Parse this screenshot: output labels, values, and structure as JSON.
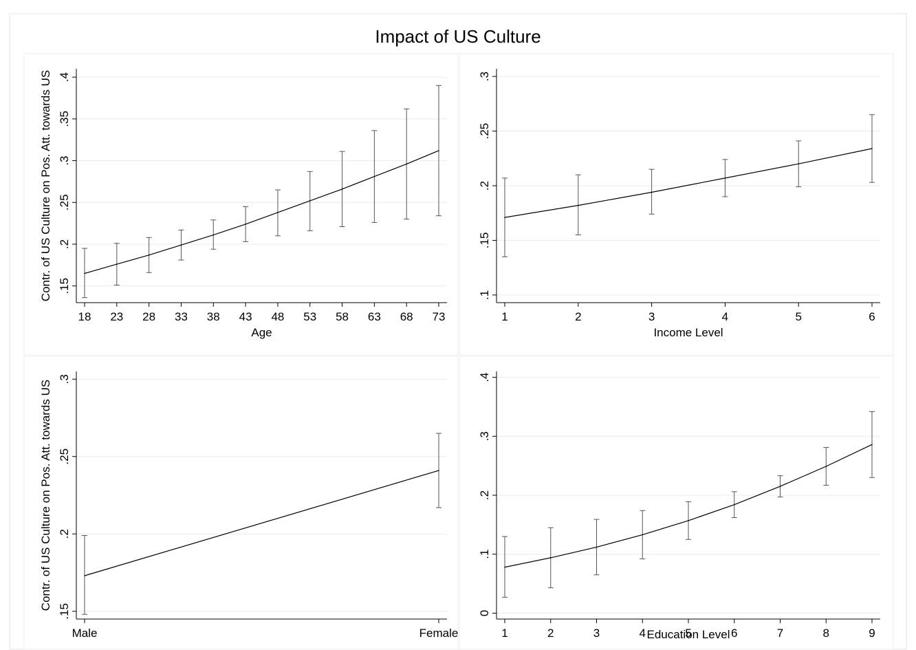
{
  "title": "Impact of US Culture",
  "chart_data": [
    {
      "type": "line",
      "panel": "top-left",
      "xlabel": "Age",
      "ylabel": "Contr. of US Culture on Pos. Att. towards US",
      "x": [
        18,
        23,
        28,
        33,
        38,
        43,
        48,
        53,
        58,
        63,
        68,
        73
      ],
      "xticks": [
        "18",
        "23",
        "28",
        "33",
        "38",
        "43",
        "48",
        "53",
        "58",
        "63",
        "68",
        "73"
      ],
      "xlim": [
        18,
        73
      ],
      "ylim": [
        0.13,
        0.41
      ],
      "yticks": [
        0.15,
        0.2,
        0.25,
        0.3,
        0.35,
        0.4
      ],
      "ytick_labels": [
        ".15",
        ".2",
        ".25",
        ".3",
        ".35",
        ".4"
      ],
      "grid": true,
      "series": [
        {
          "y": [
            0.165,
            0.176,
            0.187,
            0.199,
            0.211,
            0.224,
            0.238,
            0.252,
            0.266,
            0.281,
            0.296,
            0.312
          ],
          "lower": [
            0.136,
            0.151,
            0.166,
            0.181,
            0.194,
            0.203,
            0.21,
            0.216,
            0.221,
            0.226,
            0.23,
            0.234
          ],
          "upper": [
            0.195,
            0.201,
            0.208,
            0.217,
            0.229,
            0.245,
            0.265,
            0.287,
            0.311,
            0.336,
            0.362,
            0.39
          ]
        }
      ]
    },
    {
      "type": "line",
      "panel": "top-right",
      "xlabel": "Income Level",
      "ylabel": "",
      "x": [
        1,
        2,
        3,
        4,
        5,
        6
      ],
      "xticks": [
        "1",
        "2",
        "3",
        "4",
        "5",
        "6"
      ],
      "xlim": [
        1,
        6
      ],
      "ylim": [
        0.093,
        0.307
      ],
      "yticks": [
        0.1,
        0.15,
        0.2,
        0.25,
        0.3
      ],
      "ytick_labels": [
        ".1",
        ".15",
        ".2",
        ".25",
        ".3"
      ],
      "grid": true,
      "series": [
        {
          "y": [
            0.171,
            0.182,
            0.194,
            0.207,
            0.22,
            0.234
          ],
          "lower": [
            0.135,
            0.155,
            0.174,
            0.19,
            0.199,
            0.203
          ],
          "upper": [
            0.207,
            0.21,
            0.215,
            0.224,
            0.241,
            0.265
          ]
        }
      ]
    },
    {
      "type": "line",
      "panel": "bottom-left",
      "xlabel": "",
      "ylabel": "Contr. of US Culture on Pos. Att. towards US",
      "categories": [
        "Male",
        "Female"
      ],
      "xticks": [
        "Male",
        "Female"
      ],
      "ylim": [
        0.145,
        0.305
      ],
      "yticks": [
        0.15,
        0.2,
        0.25,
        0.3
      ],
      "ytick_labels": [
        ".15",
        ".2",
        ".25",
        ".3"
      ],
      "grid": true,
      "series": [
        {
          "y": [
            0.173,
            0.241
          ],
          "lower": [
            0.148,
            0.217
          ],
          "upper": [
            0.199,
            0.265
          ]
        }
      ]
    },
    {
      "type": "line",
      "panel": "bottom-right",
      "xlabel": "Education Level",
      "ylabel": "",
      "x": [
        1,
        2,
        3,
        4,
        5,
        6,
        7,
        8,
        9
      ],
      "xticks": [
        "1",
        "2",
        "3",
        "4",
        "5",
        "6",
        "7",
        "8",
        "9"
      ],
      "xlim": [
        1,
        9
      ],
      "ylim": [
        -0.01,
        0.41
      ],
      "yticks": [
        0,
        0.1,
        0.2,
        0.3,
        0.4
      ],
      "ytick_labels": [
        "0",
        ".1",
        ".2",
        ".3",
        ".4"
      ],
      "grid": true,
      "series": [
        {
          "y": [
            0.078,
            0.094,
            0.112,
            0.133,
            0.157,
            0.184,
            0.215,
            0.249,
            0.286
          ],
          "lower": [
            0.027,
            0.043,
            0.065,
            0.092,
            0.125,
            0.162,
            0.197,
            0.217,
            0.23
          ],
          "upper": [
            0.13,
            0.145,
            0.159,
            0.174,
            0.189,
            0.206,
            0.233,
            0.281,
            0.342
          ]
        }
      ]
    }
  ]
}
